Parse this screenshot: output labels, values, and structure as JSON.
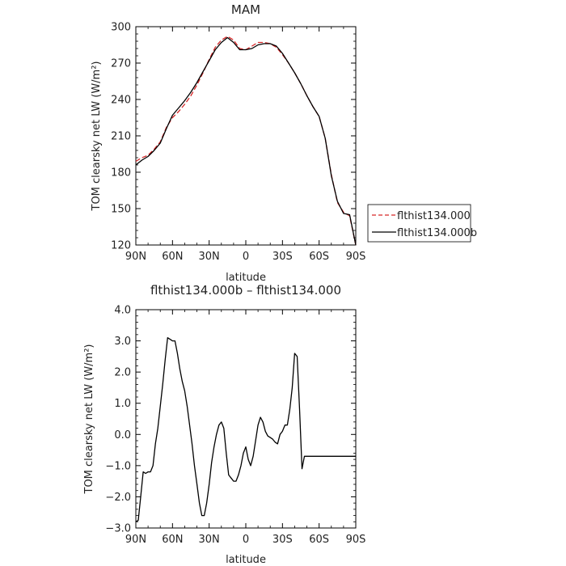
{
  "chart_data": [
    {
      "type": "line",
      "title": "MAM",
      "xlabel": "latitude",
      "ylabel": "TOM clearsky net LW (W/m²)",
      "xlim": [
        90,
        -90
      ],
      "ylim": [
        120,
        300
      ],
      "x_ticks": [
        90,
        60,
        30,
        0,
        -30,
        -60,
        -90
      ],
      "x_tick_labels": [
        "90N",
        "60N",
        "30N",
        "0",
        "30S",
        "60S",
        "90S"
      ],
      "y_ticks": [
        120,
        150,
        180,
        210,
        240,
        270,
        300
      ],
      "y_tick_labels": [
        "120",
        "150",
        "180",
        "210",
        "240",
        "270",
        "300"
      ],
      "legend_position": "right",
      "series": [
        {
          "name": "flthist134.000",
          "color": "#d62728",
          "style": "dashed",
          "x": [
            90,
            85,
            80,
            75,
            70,
            65,
            60,
            55,
            50,
            45,
            40,
            35,
            30,
            25,
            20,
            15,
            10,
            5,
            0,
            -5,
            -10,
            -15,
            -20,
            -25,
            -30,
            -35,
            -40,
            -45,
            -50,
            -55,
            -60,
            -65,
            -70,
            -75,
            -80,
            -85,
            -90
          ],
          "y": [
            189,
            192,
            194,
            199,
            205,
            217,
            225,
            230,
            236,
            243,
            252,
            262,
            273,
            283,
            289,
            292,
            289,
            282,
            281,
            284,
            287,
            287,
            286,
            283,
            277,
            270,
            262,
            253,
            243,
            234,
            226,
            208,
            178,
            155,
            147,
            144,
            120
          ]
        },
        {
          "name": "flthist134.000b",
          "color": "#000000",
          "style": "solid",
          "x": [
            90,
            85,
            80,
            75,
            70,
            65,
            60,
            55,
            50,
            45,
            40,
            35,
            30,
            25,
            20,
            15,
            10,
            5,
            0,
            -5,
            -10,
            -15,
            -20,
            -25,
            -30,
            -35,
            -40,
            -45,
            -50,
            -55,
            -60,
            -65,
            -70,
            -75,
            -80,
            -85,
            -90
          ],
          "y": [
            186,
            190,
            193,
            198,
            204,
            216,
            227,
            233,
            239,
            246,
            254,
            263,
            272,
            281,
            287,
            291,
            287,
            281,
            281,
            282,
            285,
            286,
            286,
            284,
            278,
            270,
            262,
            253,
            243,
            234,
            226,
            208,
            177,
            156,
            146,
            145,
            120
          ]
        }
      ]
    },
    {
      "type": "line",
      "title": "flthist134.000b – flthist134.000",
      "xlabel": "latitude",
      "ylabel": "TOM clearsky net LW (W/m²)",
      "xlim": [
        90,
        -90
      ],
      "ylim": [
        -3,
        4
      ],
      "x_ticks": [
        90,
        60,
        30,
        0,
        -30,
        -60,
        -90
      ],
      "x_tick_labels": [
        "90N",
        "60N",
        "30N",
        "0",
        "30S",
        "60S",
        "90S"
      ],
      "y_ticks": [
        -3,
        -2,
        -1,
        0,
        1,
        2,
        3,
        4
      ],
      "y_tick_labels": [
        "−3.0",
        "−2.0",
        "−1.0",
        "0.0",
        "1.0",
        "2.0",
        "3.0",
        "4.0"
      ],
      "series": [
        {
          "color": "#000000",
          "x": [
            90,
            88,
            86,
            84,
            82,
            80,
            78,
            76,
            74,
            72,
            70,
            68,
            66,
            64,
            62,
            60,
            58,
            56,
            54,
            52,
            50,
            48,
            46,
            44,
            42,
            40,
            38,
            36,
            34,
            32,
            30,
            28,
            26,
            24,
            22,
            20,
            18,
            16,
            14,
            12,
            10,
            8,
            6,
            4,
            2,
            0,
            -2,
            -4,
            -6,
            -8,
            -10,
            -12,
            -14,
            -16,
            -18,
            -20,
            -22,
            -24,
            -26,
            -28,
            -30,
            -32,
            -34,
            -36,
            -38,
            -40,
            -42,
            -44,
            -46,
            -48,
            -50,
            -52,
            -54,
            -56,
            -58,
            -60,
            -62,
            -64,
            -66,
            -68,
            -70,
            -72,
            -74,
            -76,
            -78,
            -80,
            -82,
            -84,
            -86,
            -88,
            -90
          ],
          "y": [
            -2.8,
            -2.75,
            -2.0,
            -1.2,
            -1.25,
            -1.2,
            -1.2,
            -1.0,
            -0.3,
            0.2,
            0.9,
            1.6,
            2.4,
            3.1,
            3.05,
            3.0,
            3.0,
            2.6,
            2.1,
            1.7,
            1.4,
            0.9,
            0.3,
            -0.3,
            -1.0,
            -1.6,
            -2.2,
            -2.6,
            -2.6,
            -2.2,
            -1.6,
            -0.9,
            -0.4,
            0.0,
            0.3,
            0.4,
            0.2,
            -0.6,
            -1.3,
            -1.4,
            -1.5,
            -1.5,
            -1.3,
            -1.0,
            -0.6,
            -0.4,
            -0.8,
            -1.0,
            -0.7,
            -0.2,
            0.3,
            0.55,
            0.4,
            0.1,
            -0.05,
            -0.1,
            -0.15,
            -0.25,
            -0.3,
            0.0,
            0.1,
            0.3,
            0.3,
            0.8,
            1.5,
            2.6,
            2.5,
            0.8,
            -1.1,
            -0.7,
            -0.7,
            -0.7,
            -0.7,
            -0.7,
            -0.7,
            -0.7,
            -0.7,
            -0.7,
            -0.7,
            -0.7,
            -0.7,
            -0.7,
            -0.7,
            -0.7,
            -0.7,
            -0.7,
            -0.7,
            -0.7,
            -0.7,
            -0.7,
            -0.7
          ]
        }
      ]
    }
  ]
}
